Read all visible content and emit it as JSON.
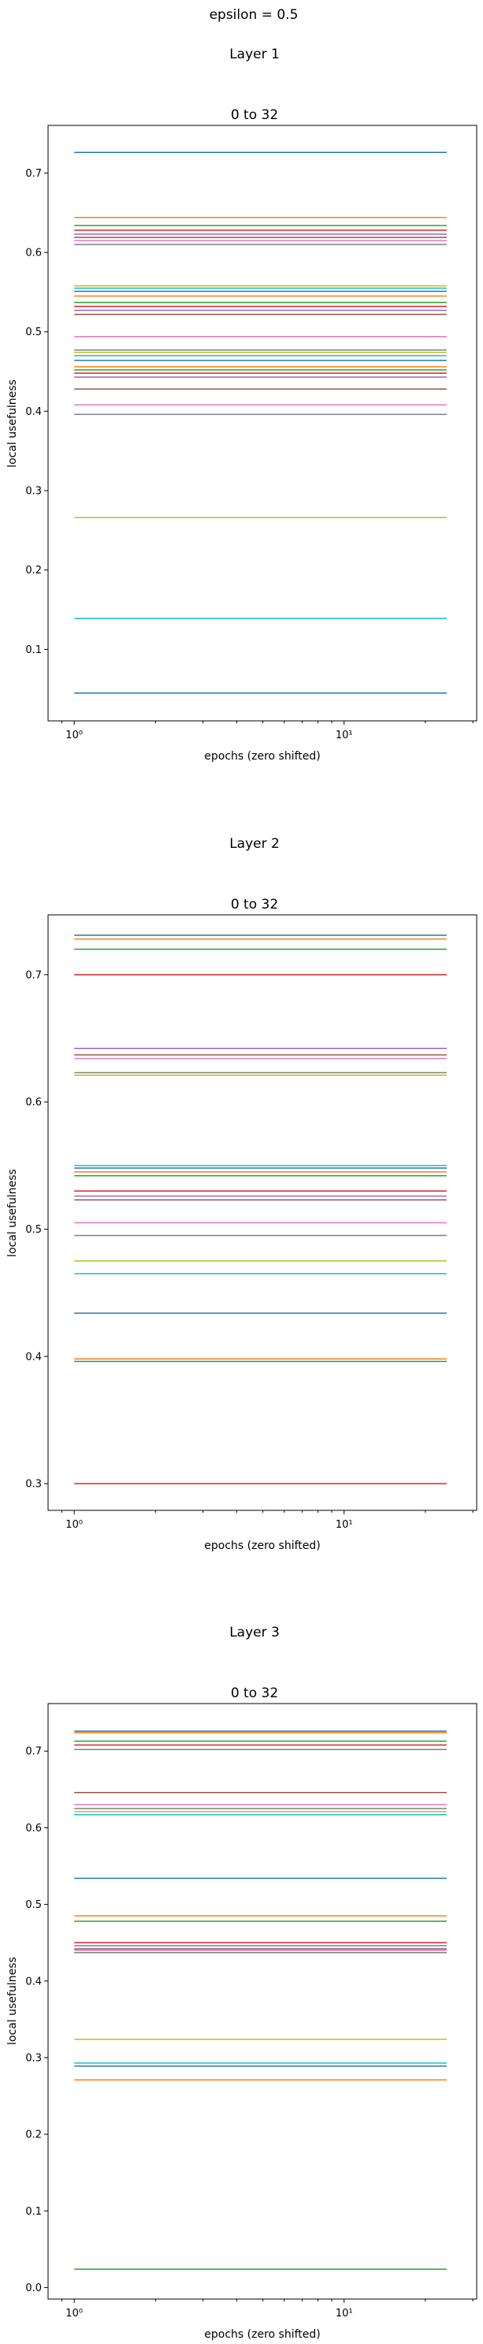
{
  "figure": {
    "title": "epsilon = 0.5"
  },
  "palette": [
    "#1f77b4",
    "#ff7f0e",
    "#2ca02c",
    "#d62728",
    "#9467bd",
    "#8c564b",
    "#e377c2",
    "#7f7f7f",
    "#bcbd22",
    "#17becf"
  ],
  "chart_data": [
    {
      "type": "line",
      "suptitle": "Layer 1",
      "title": "0 to 32",
      "xlabel": "epochs (zero shifted)",
      "ylabel": "local usefulness",
      "xscale": "log",
      "xlim": [
        0.8,
        31
      ],
      "x_range": [
        1,
        24
      ],
      "ylim": [
        0.01,
        0.76
      ],
      "yticks": [
        0.1,
        0.2,
        0.3,
        0.4,
        0.5,
        0.6,
        0.7
      ],
      "ytick_labels": [
        "0.1",
        "0.2",
        "0.3",
        "0.4",
        "0.5",
        "0.6",
        "0.7"
      ],
      "xticks": [
        1,
        10
      ],
      "xtick_labels": [
        "10⁰",
        "10¹"
      ],
      "grid": false,
      "series_values": [
        0.726,
        0.644,
        0.634,
        0.628,
        0.623,
        0.619,
        0.615,
        0.61,
        0.558,
        0.555,
        0.551,
        0.545,
        0.537,
        0.532,
        0.527,
        0.522,
        0.494,
        0.477,
        0.474,
        0.47,
        0.464,
        0.456,
        0.452,
        0.448,
        0.443,
        0.428,
        0.408,
        0.396,
        0.266,
        0.139,
        0.045
      ]
    },
    {
      "type": "line",
      "suptitle": "Layer 2",
      "title": "0 to 32",
      "xlabel": "epochs (zero shifted)",
      "ylabel": "local usefulness",
      "xscale": "log",
      "xlim": [
        0.8,
        31
      ],
      "x_range": [
        1,
        24
      ],
      "ylim": [
        0.279,
        0.747
      ],
      "yticks": [
        0.3,
        0.4,
        0.5,
        0.6,
        0.7
      ],
      "ytick_labels": [
        "0.3",
        "0.4",
        "0.5",
        "0.6",
        "0.7"
      ],
      "xticks": [
        1,
        10
      ],
      "xtick_labels": [
        "10⁰",
        "10¹"
      ],
      "grid": false,
      "series_values": [
        0.731,
        0.728,
        0.72,
        0.7,
        0.642,
        0.637,
        0.634,
        0.623,
        0.621,
        0.55,
        0.548,
        0.545,
        0.542,
        0.53,
        0.526,
        0.523,
        0.505,
        0.495,
        0.475,
        0.465,
        0.434,
        0.398,
        0.396,
        0.3
      ]
    },
    {
      "type": "line",
      "suptitle": "Layer 3",
      "title": "0 to 32",
      "xlabel": "epochs (zero shifted)",
      "ylabel": "local usefulness",
      "xscale": "log",
      "xlim": [
        0.8,
        31
      ],
      "x_range": [
        1,
        24
      ],
      "ylim": [
        -0.015,
        0.762
      ],
      "yticks": [
        0.0,
        0.1,
        0.2,
        0.3,
        0.4,
        0.5,
        0.6,
        0.7
      ],
      "ytick_labels": [
        "0.0",
        "0.1",
        "0.2",
        "0.3",
        "0.4",
        "0.5",
        "0.6",
        "0.7"
      ],
      "xticks": [
        1,
        10
      ],
      "xtick_labels": [
        "10⁰",
        "10¹"
      ],
      "grid": false,
      "series_values": [
        0.726,
        0.724,
        0.713,
        0.708,
        0.702,
        0.646,
        0.63,
        0.625,
        0.621,
        0.617,
        0.534,
        0.485,
        0.478,
        0.45,
        0.446,
        0.442,
        0.44,
        0.437,
        0.324,
        0.293,
        0.289,
        0.271,
        0.024
      ]
    }
  ]
}
